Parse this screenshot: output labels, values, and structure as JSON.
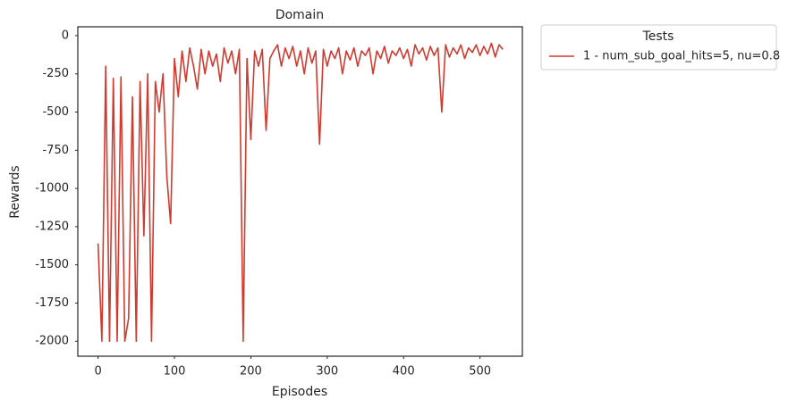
{
  "chart_data": {
    "type": "line",
    "title": "Domain",
    "x_label": "Episodes",
    "y_label": "Rewards",
    "legend_title": "Tests",
    "legend_position": "outside right",
    "grid": false,
    "xlim": [
      -26.5,
      555.5
    ],
    "ylim": [
      -2098,
      58
    ],
    "xticks": [
      0,
      100,
      200,
      300,
      400,
      500
    ],
    "yticks": [
      0,
      -250,
      -500,
      -750,
      -1000,
      -1250,
      -1500,
      -1750,
      -2000
    ],
    "x": [
      0,
      5,
      10,
      15,
      20,
      25,
      30,
      35,
      40,
      45,
      50,
      55,
      60,
      65,
      70,
      75,
      80,
      85,
      90,
      95,
      100,
      105,
      110,
      115,
      120,
      125,
      130,
      135,
      140,
      145,
      150,
      155,
      160,
      165,
      170,
      175,
      180,
      185,
      190,
      195,
      200,
      205,
      210,
      215,
      220,
      225,
      230,
      235,
      240,
      245,
      250,
      255,
      260,
      265,
      270,
      275,
      280,
      285,
      290,
      295,
      300,
      305,
      310,
      315,
      320,
      325,
      330,
      335,
      340,
      345,
      350,
      355,
      360,
      365,
      370,
      375,
      380,
      385,
      390,
      395,
      400,
      405,
      410,
      415,
      420,
      425,
      430,
      435,
      440,
      445,
      450,
      455,
      460,
      465,
      470,
      475,
      480,
      485,
      490,
      495,
      500,
      505,
      510,
      515,
      520,
      525,
      530
    ],
    "series": [
      {
        "name": "1 - num_sub_goal_hits=5, nu=0.8",
        "color": "#d13b2f",
        "values": [
          -1360,
          -2000,
          -200,
          -2000,
          -280,
          -2000,
          -270,
          -2000,
          -1850,
          -400,
          -2000,
          -300,
          -1310,
          -250,
          -2000,
          -300,
          -500,
          -250,
          -920,
          -1230,
          -150,
          -400,
          -100,
          -300,
          -80,
          -200,
          -350,
          -90,
          -250,
          -100,
          -200,
          -120,
          -300,
          -80,
          -180,
          -100,
          -250,
          -90,
          -2000,
          -150,
          -680,
          -100,
          -200,
          -90,
          -620,
          -150,
          -100,
          -60,
          -200,
          -80,
          -150,
          -70,
          -200,
          -100,
          -250,
          -80,
          -180,
          -100,
          -710,
          -90,
          -200,
          -100,
          -150,
          -80,
          -250,
          -100,
          -160,
          -80,
          -200,
          -100,
          -130,
          -80,
          -250,
          -100,
          -150,
          -70,
          -180,
          -100,
          -130,
          -80,
          -150,
          -90,
          -200,
          -60,
          -120,
          -80,
          -160,
          -70,
          -130,
          -80,
          -500,
          -60,
          -140,
          -80,
          -120,
          -60,
          -150,
          -80,
          -110,
          -60,
          -130,
          -70,
          -120,
          -50,
          -140,
          -60,
          -90
        ]
      }
    ]
  }
}
